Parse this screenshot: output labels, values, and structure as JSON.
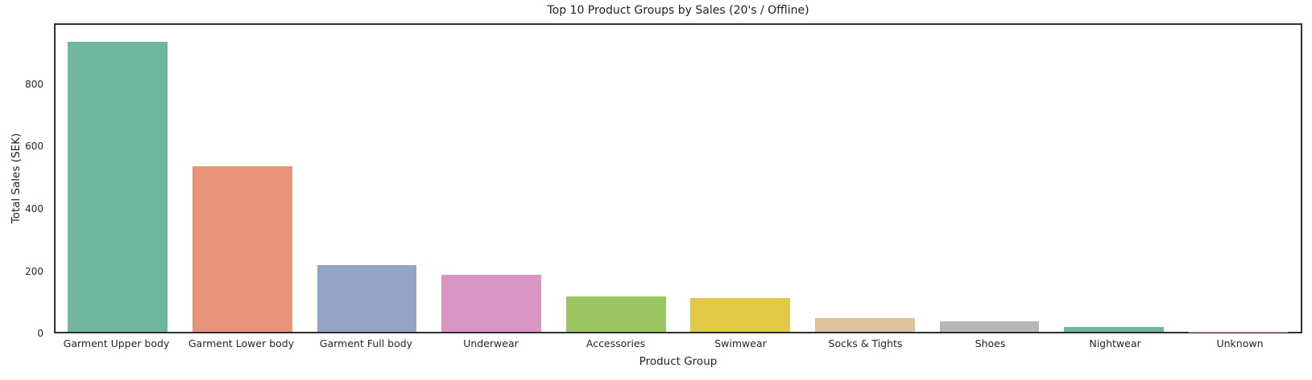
{
  "chart_data": {
    "type": "bar",
    "title": "Top 10 Product Groups by Sales (20's / Offline)",
    "xlabel": "Product Group",
    "ylabel": "Total Sales (SEK)",
    "categories": [
      "Garment Upper body",
      "Garment Lower body",
      "Garment Full body",
      "Underwear",
      "Accessories",
      "Swimwear",
      "Socks & Tights",
      "Shoes",
      "Nightwear",
      "Unknown"
    ],
    "values": [
      940,
      537,
      217,
      186,
      116,
      110,
      45,
      34,
      16,
      1
    ],
    "yticks": [
      0,
      200,
      400,
      600,
      800
    ],
    "ylim": [
      0,
      996
    ],
    "grid": false,
    "legend": false,
    "bar_colors": [
      "#6fb5a0",
      "#e8947b",
      "#95a3c5",
      "#d996c4",
      "#9cc662",
      "#e2c845",
      "#dcc39c",
      "#b5b5b5",
      "#6fb5a0",
      "#e8947b"
    ],
    "spine_color": "#303030",
    "text_color": "#262626"
  }
}
